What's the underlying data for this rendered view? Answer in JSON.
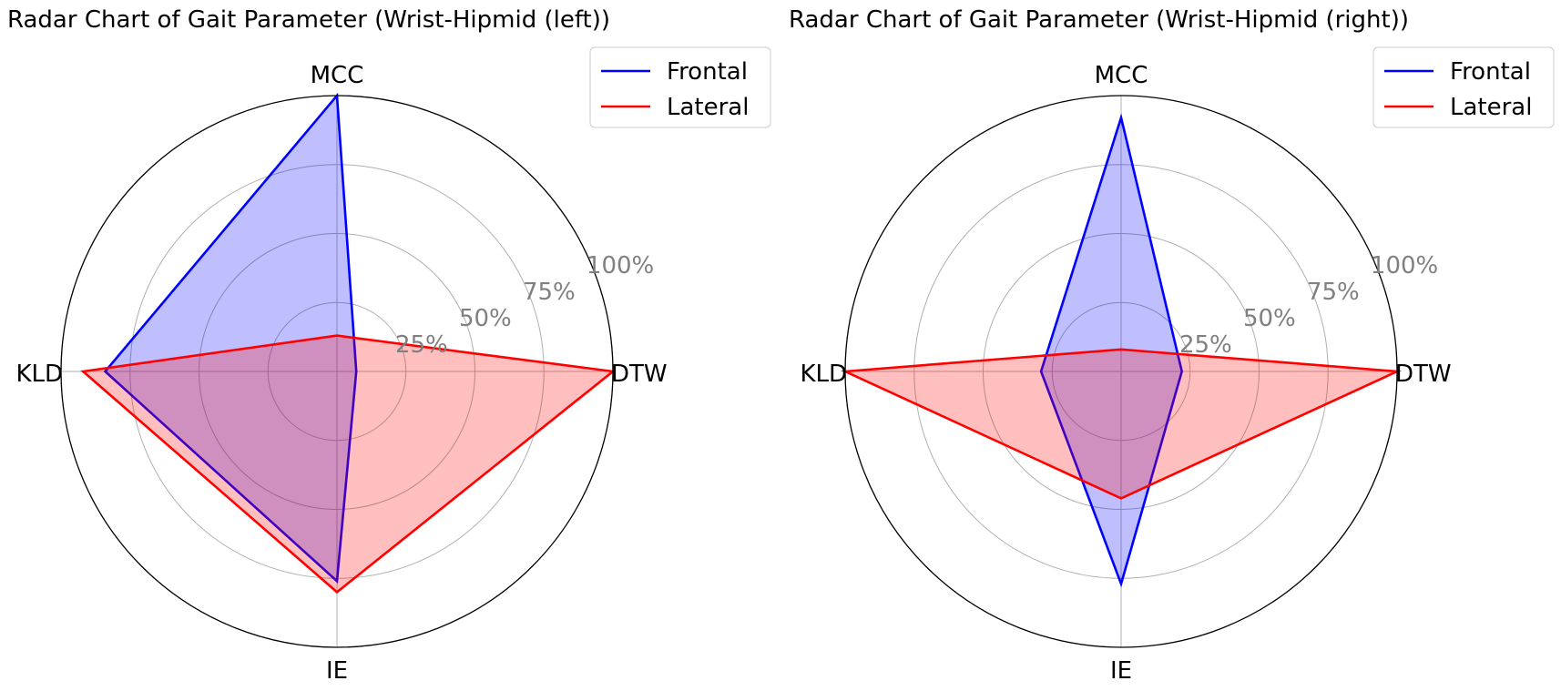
{
  "chart_data": [
    {
      "type": "radar",
      "title": "Radar Chart of Gait Parameter (Wrist-Hipmid (left))",
      "categories": [
        "DTW",
        "MCC",
        "KLD",
        "IE"
      ],
      "rlim": [
        0,
        100
      ],
      "radial_ticks": [
        25,
        50,
        75,
        100
      ],
      "radial_tick_labels": [
        "25%",
        "50%",
        "75%",
        "100%"
      ],
      "grid": true,
      "legend_position": "top-right",
      "series": [
        {
          "name": "Frontal",
          "color": "#0000ff",
          "fill": "#0000ff",
          "values": [
            7,
            100,
            84,
            76
          ]
        },
        {
          "name": "Lateral",
          "color": "#ff0000",
          "fill": "#ff0000",
          "values": [
            100,
            13,
            92,
            80
          ]
        }
      ]
    },
    {
      "type": "radar",
      "title": "Radar Chart of Gait Parameter (Wrist-Hipmid (right))",
      "categories": [
        "DTW",
        "MCC",
        "KLD",
        "IE"
      ],
      "rlim": [
        0,
        100
      ],
      "radial_ticks": [
        25,
        50,
        75,
        100
      ],
      "radial_tick_labels": [
        "25%",
        "50%",
        "75%",
        "100%"
      ],
      "grid": true,
      "legend_position": "top-right",
      "series": [
        {
          "name": "Frontal",
          "color": "#0000ff",
          "fill": "#0000ff",
          "values": [
            22,
            92,
            29,
            77
          ]
        },
        {
          "name": "Lateral",
          "color": "#ff0000",
          "fill": "#ff0000",
          "values": [
            100,
            8,
            100,
            46
          ]
        }
      ]
    }
  ]
}
